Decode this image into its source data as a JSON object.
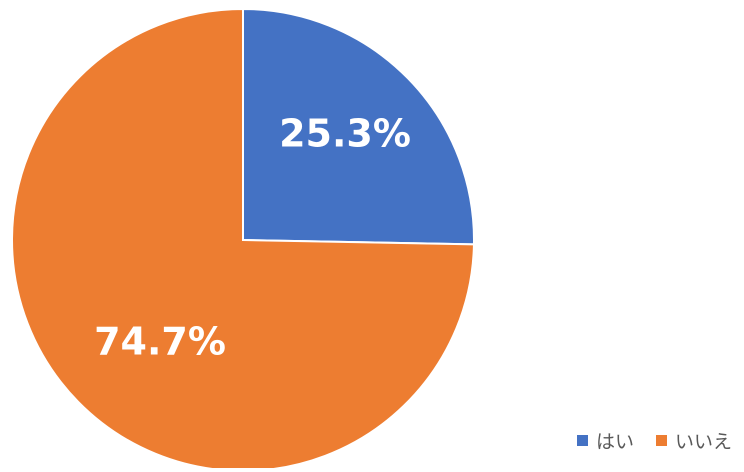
{
  "chart_data": {
    "type": "pie",
    "title": "",
    "start_angle_deg": 0,
    "direction": "clockwise",
    "legend_position": "bottom-right",
    "slices": [
      {
        "label": "はい",
        "value": 25.3,
        "display": "25.3%",
        "color": "#4472C4"
      },
      {
        "label": "いいえ",
        "value": 74.7,
        "display": "74.7%",
        "color": "#ED7D31"
      }
    ]
  }
}
